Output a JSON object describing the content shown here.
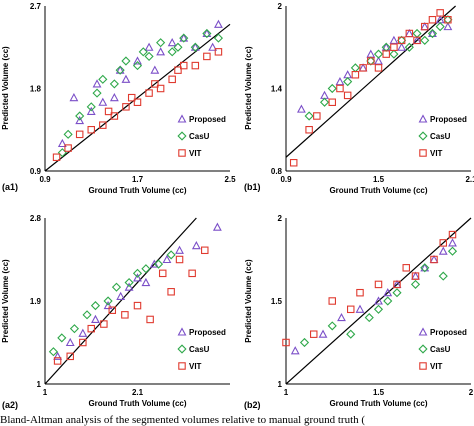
{
  "caption": "Bland-Altman analysis of the segmented volumes relative to manual ground truth (",
  "colors": {
    "proposed": "#7b4fc8",
    "casu": "#2fa84a",
    "vit": "#e03a2f"
  },
  "chart_data": [
    {
      "type": "scatter",
      "panel": "(a1)",
      "xlabel": "Ground Truth Volume (cc)",
      "ylabel": "Predicted Volume (cc)",
      "xlim": [
        0.9,
        2.5
      ],
      "ylim": [
        0.9,
        2.7
      ],
      "xticks": [
        "0.9",
        "1.7",
        "2.5"
      ],
      "yticks": [
        "0.9",
        "1.8",
        "2.7"
      ],
      "legend": [
        "Proposed",
        "CasU",
        "VIT"
      ],
      "legend_position": "bottom-right",
      "series": [
        {
          "name": "Proposed",
          "marker": "triangle",
          "x": [
            1.05,
            1.15,
            1.2,
            1.3,
            1.35,
            1.4,
            1.5,
            1.55,
            1.6,
            1.7,
            1.8,
            1.85,
            1.9,
            2.0,
            2.1,
            2.2,
            2.3,
            2.35,
            2.4
          ],
          "y": [
            1.2,
            1.7,
            1.45,
            1.55,
            1.85,
            1.65,
            1.7,
            2.0,
            1.9,
            2.1,
            2.25,
            2.0,
            2.2,
            2.3,
            2.35,
            2.25,
            2.4,
            2.25,
            2.5
          ]
        },
        {
          "name": "CasU",
          "marker": "diamond",
          "x": [
            1.05,
            1.1,
            1.2,
            1.3,
            1.35,
            1.4,
            1.5,
            1.55,
            1.6,
            1.7,
            1.75,
            1.8,
            1.9,
            2.0,
            2.05,
            2.1,
            2.2,
            2.3,
            2.4
          ],
          "y": [
            1.1,
            1.3,
            1.5,
            1.6,
            1.75,
            1.9,
            1.85,
            2.0,
            2.1,
            2.05,
            2.2,
            2.15,
            2.3,
            2.2,
            2.25,
            2.35,
            2.25,
            2.4,
            2.35
          ]
        },
        {
          "name": "VIT",
          "marker": "square",
          "x": [
            1.0,
            1.1,
            1.2,
            1.3,
            1.4,
            1.45,
            1.5,
            1.6,
            1.65,
            1.7,
            1.8,
            1.85,
            1.9,
            2.0,
            2.05,
            2.1,
            2.2,
            2.3,
            2.4
          ],
          "y": [
            1.05,
            1.15,
            1.3,
            1.35,
            1.4,
            1.55,
            1.5,
            1.6,
            1.7,
            1.65,
            1.75,
            1.85,
            1.8,
            1.9,
            2.0,
            2.05,
            2.05,
            2.15,
            2.2
          ]
        }
      ]
    },
    {
      "type": "scatter",
      "panel": "(b1)",
      "xlabel": "Ground Truth Volume (cc)",
      "ylabel": "Predicted Volume (cc)",
      "xlim": [
        0.9,
        2.1
      ],
      "ylim": [
        0.8,
        2.0
      ],
      "xticks": [
        "0.9",
        "1.5",
        "2.1"
      ],
      "yticks": [
        "0.8",
        "1.4",
        "2"
      ],
      "legend": [
        "Proposed",
        "CasU",
        "VIT"
      ],
      "legend_position": "bottom-right",
      "series": [
        {
          "name": "Proposed",
          "marker": "triangle",
          "x": [
            1.0,
            1.15,
            1.25,
            1.3,
            1.4,
            1.45,
            1.5,
            1.55,
            1.6,
            1.65,
            1.7,
            1.75,
            1.8,
            1.85,
            1.9,
            1.95
          ],
          "y": [
            1.25,
            1.35,
            1.45,
            1.5,
            1.55,
            1.65,
            1.6,
            1.7,
            1.75,
            1.7,
            1.8,
            1.75,
            1.85,
            1.8,
            1.9,
            1.85
          ]
        },
        {
          "name": "CasU",
          "marker": "diamond",
          "x": [
            1.05,
            1.15,
            1.2,
            1.3,
            1.35,
            1.45,
            1.5,
            1.55,
            1.6,
            1.65,
            1.7,
            1.75,
            1.8,
            1.85,
            1.9,
            1.95
          ],
          "y": [
            1.2,
            1.3,
            1.4,
            1.45,
            1.55,
            1.6,
            1.65,
            1.7,
            1.65,
            1.75,
            1.7,
            1.8,
            1.75,
            1.8,
            1.85,
            1.9
          ]
        },
        {
          "name": "VIT",
          "marker": "square",
          "x": [
            0.95,
            1.05,
            1.1,
            1.2,
            1.25,
            1.3,
            1.35,
            1.4,
            1.45,
            1.5,
            1.55,
            1.6,
            1.65,
            1.7,
            1.75,
            1.8,
            1.85,
            1.9,
            1.95
          ],
          "y": [
            0.86,
            1.1,
            1.2,
            1.3,
            1.4,
            1.35,
            1.5,
            1.55,
            1.6,
            1.55,
            1.65,
            1.7,
            1.75,
            1.8,
            1.75,
            1.85,
            1.9,
            1.95,
            1.9
          ]
        }
      ]
    },
    {
      "type": "scatter",
      "panel": "(a2)",
      "xlabel": "Ground Truth Volume (cc)",
      "ylabel": "Predicted Volume (cc)",
      "xlim": [
        1.0,
        3.2
      ],
      "ylim": [
        1.0,
        2.8
      ],
      "xticks": [
        "1",
        "2.1"
      ],
      "yticks": [
        "1",
        "1.9",
        "2.8"
      ],
      "legend": [
        "Proposed",
        "CasU",
        "VIT"
      ],
      "legend_position": "bottom-right",
      "series": [
        {
          "name": "Proposed",
          "marker": "triangle",
          "x": [
            1.15,
            1.3,
            1.45,
            1.6,
            1.75,
            1.9,
            2.0,
            2.1,
            2.2,
            2.3,
            2.45,
            2.6,
            2.8,
            3.05
          ],
          "y": [
            1.3,
            1.45,
            1.55,
            1.7,
            1.85,
            1.95,
            2.05,
            2.15,
            2.1,
            2.3,
            2.35,
            2.45,
            2.5,
            2.7
          ]
        },
        {
          "name": "CasU",
          "marker": "diamond",
          "x": [
            1.1,
            1.2,
            1.35,
            1.5,
            1.6,
            1.75,
            1.85,
            2.0,
            2.1,
            2.2,
            2.35,
            2.5
          ],
          "y": [
            1.35,
            1.5,
            1.6,
            1.75,
            1.85,
            1.9,
            2.05,
            2.1,
            2.2,
            2.25,
            2.3,
            2.4
          ]
        },
        {
          "name": "VIT",
          "marker": "square",
          "x": [
            1.15,
            1.3,
            1.45,
            1.55,
            1.7,
            1.8,
            1.95,
            2.1,
            2.25,
            2.4,
            2.5,
            2.6,
            2.75,
            2.9
          ],
          "y": [
            1.25,
            1.3,
            1.45,
            1.6,
            1.65,
            1.8,
            1.75,
            1.85,
            1.7,
            2.2,
            2.0,
            2.35,
            2.2,
            2.45
          ]
        }
      ]
    },
    {
      "type": "scatter",
      "panel": "(b2)",
      "xlabel": "Ground Truth Volume (cc)",
      "ylabel": "Predicted Volume (cc)",
      "xlim": [
        1.0,
        2.0
      ],
      "ylim": [
        1.0,
        2.0
      ],
      "xticks": [
        "1",
        "1.5",
        "2"
      ],
      "yticks": [
        "1",
        "1.5",
        "2"
      ],
      "legend": [
        "Proposed",
        "CasU",
        "VIT"
      ],
      "legend_position": "bottom-right",
      "series": [
        {
          "name": "Proposed",
          "marker": "triangle",
          "x": [
            1.05,
            1.2,
            1.3,
            1.4,
            1.5,
            1.55,
            1.6,
            1.7,
            1.75,
            1.8,
            1.85,
            1.9
          ],
          "y": [
            1.2,
            1.3,
            1.4,
            1.45,
            1.5,
            1.55,
            1.6,
            1.65,
            1.7,
            1.75,
            1.8,
            1.85
          ]
        },
        {
          "name": "CasU",
          "marker": "diamond",
          "x": [
            1.1,
            1.25,
            1.35,
            1.45,
            1.5,
            1.55,
            1.6,
            1.7,
            1.75,
            1.85,
            1.9
          ],
          "y": [
            1.25,
            1.35,
            1.3,
            1.4,
            1.45,
            1.5,
            1.55,
            1.6,
            1.7,
            1.65,
            1.8
          ]
        },
        {
          "name": "VIT",
          "marker": "square",
          "x": [
            1.0,
            1.15,
            1.25,
            1.35,
            1.4,
            1.5,
            1.6,
            1.65,
            1.7,
            1.8,
            1.85,
            1.9
          ],
          "y": [
            1.25,
            1.3,
            1.5,
            1.45,
            1.55,
            1.6,
            1.6,
            1.7,
            1.65,
            1.75,
            1.85,
            1.9
          ]
        }
      ]
    }
  ]
}
